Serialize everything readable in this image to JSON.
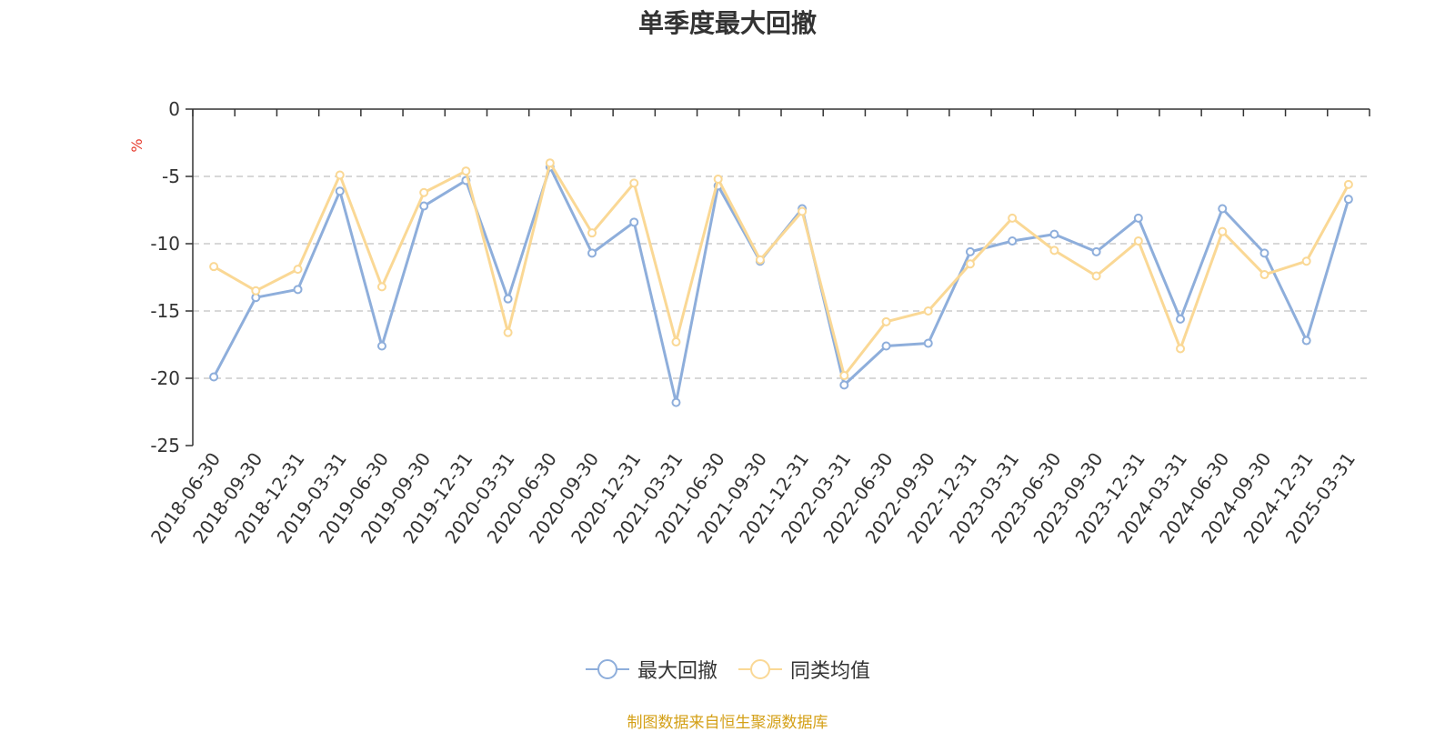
{
  "chart_data": {
    "type": "line",
    "title": "单季度最大回撤",
    "ylabel": "%",
    "ylim": [
      -25,
      0
    ],
    "yticks": [
      "0",
      "-5",
      "-10",
      "-15",
      "-20",
      "-25"
    ],
    "grid": true,
    "legend_position": "bottom",
    "categories": [
      "2018-06-30",
      "2018-09-30",
      "2018-12-31",
      "2019-03-31",
      "2019-06-30",
      "2019-09-30",
      "2019-12-31",
      "2020-03-31",
      "2020-06-30",
      "2020-09-30",
      "2020-12-31",
      "2021-03-31",
      "2021-06-30",
      "2021-09-30",
      "2021-12-31",
      "2022-03-31",
      "2022-06-30",
      "2022-09-30",
      "2022-12-31",
      "2023-03-31",
      "2023-06-30",
      "2023-09-30",
      "2023-12-31",
      "2024-03-31",
      "2024-06-30",
      "2024-09-30",
      "2024-12-31",
      "2025-03-31"
    ],
    "series": [
      {
        "name": "最大回撤",
        "color": "#8eaedb",
        "values": [
          -19.9,
          -14.0,
          -13.4,
          -6.1,
          -17.6,
          -7.2,
          -5.3,
          -14.1,
          -4.3,
          -10.7,
          -8.4,
          -21.8,
          -5.7,
          -11.3,
          -7.4,
          -20.5,
          -17.6,
          -17.4,
          -10.6,
          -9.8,
          -9.3,
          -10.6,
          -8.1,
          -15.6,
          -7.4,
          -10.7,
          -17.2,
          -6.7
        ]
      },
      {
        "name": "同类均值",
        "color": "#fad895",
        "values": [
          -11.7,
          -13.5,
          -11.9,
          -4.9,
          -13.2,
          -6.2,
          -4.6,
          -16.6,
          -4.0,
          -9.2,
          -5.5,
          -17.3,
          -5.2,
          -11.2,
          -7.6,
          -19.8,
          -15.8,
          -15.0,
          -11.5,
          -8.1,
          -10.5,
          -12.4,
          -9.8,
          -17.8,
          -9.1,
          -12.3,
          -11.3,
          -5.6
        ]
      }
    ]
  },
  "footer": {
    "source": "制图数据来自恒生聚源数据库"
  }
}
